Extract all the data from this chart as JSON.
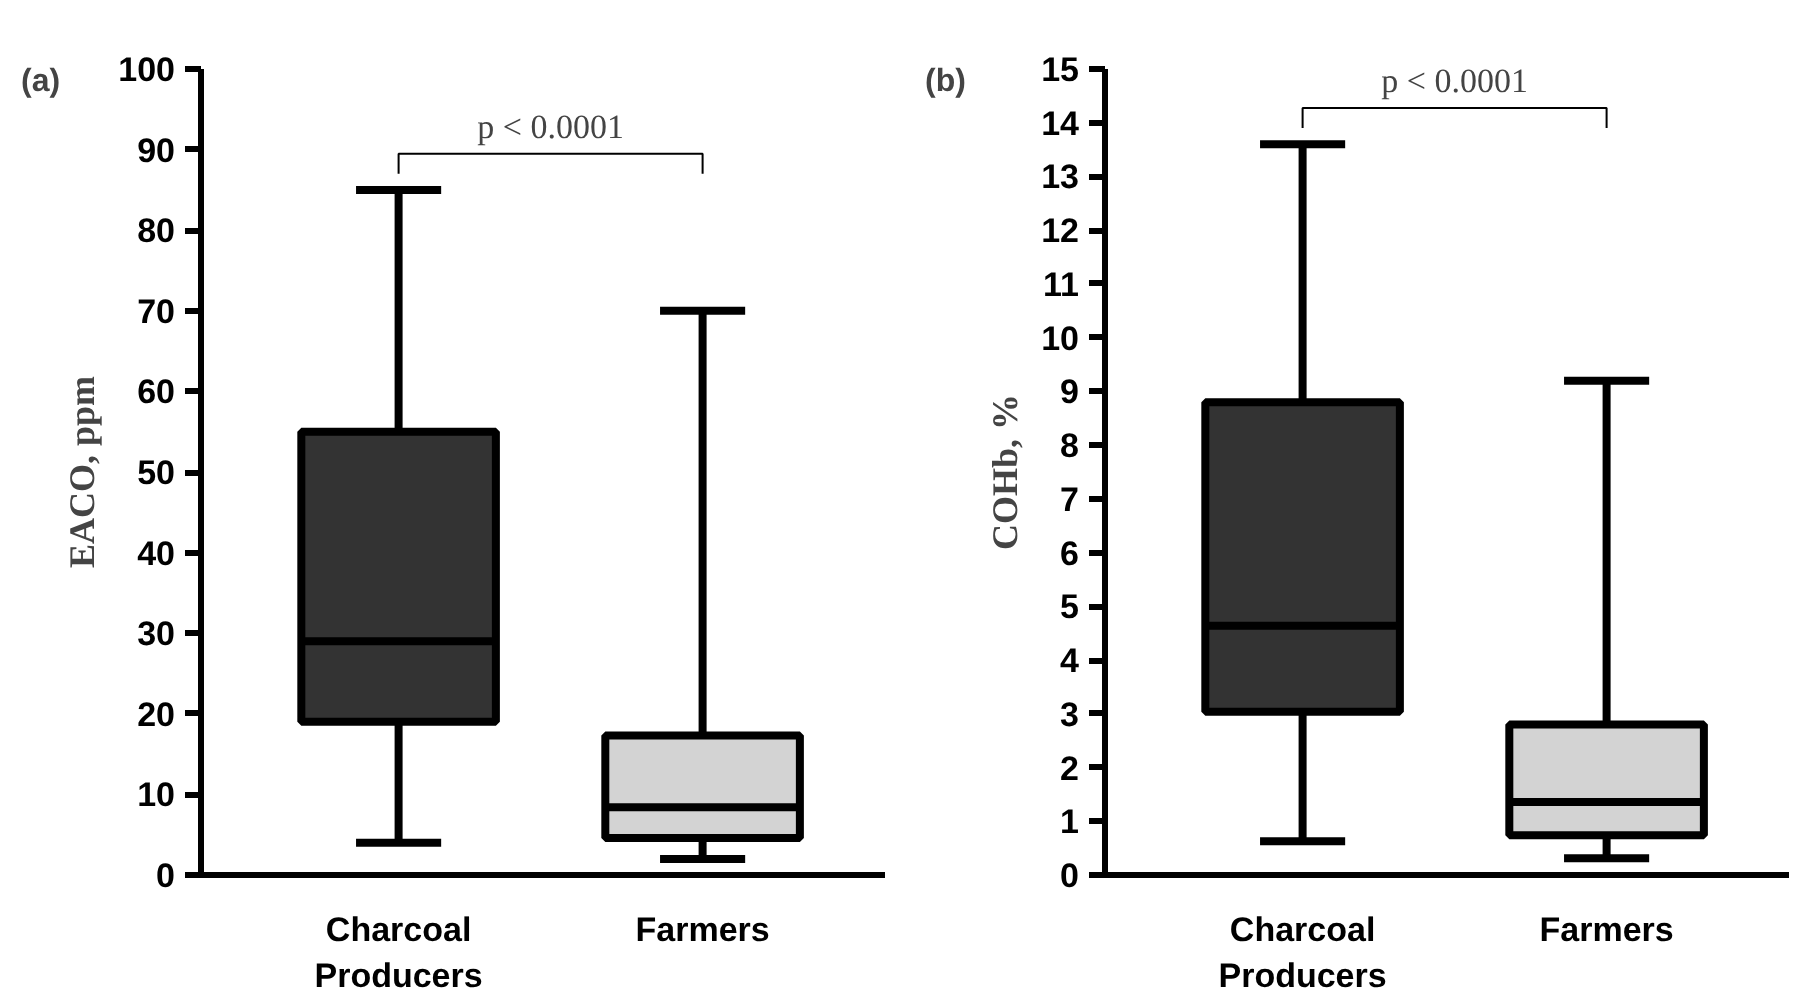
{
  "chart_data": [
    {
      "type": "box",
      "title": "(a)",
      "ylabel": "EACO, ppm",
      "categories": [
        "Charcoal\nProducers",
        "Farmers"
      ],
      "colors": [
        "#333333",
        "#d3d3d3"
      ],
      "boxes": [
        {
          "low": 4,
          "q1": 19,
          "median": 29,
          "q3": 55,
          "high": 85
        },
        {
          "low": 2,
          "q1": 4.6,
          "median": 8.4,
          "q3": 17.3,
          "high": 70
        }
      ],
      "ylim": [
        0,
        100
      ],
      "yticks": [
        0,
        10,
        20,
        30,
        40,
        50,
        60,
        70,
        80,
        90,
        100
      ],
      "grid": false,
      "annotations": [
        "p < 0.0001"
      ]
    },
    {
      "type": "box",
      "title": "(b)",
      "ylabel": "COHb, %",
      "categories": [
        "Charcoal\nProducers",
        "Farmers"
      ],
      "colors": [
        "#333333",
        "#d3d3d3"
      ],
      "boxes": [
        {
          "low": 0.63,
          "q1": 3.04,
          "median": 4.64,
          "q3": 8.8,
          "high": 13.6
        },
        {
          "low": 0.31,
          "q1": 0.74,
          "median": 1.36,
          "q3": 2.8,
          "high": 9.2
        }
      ],
      "ylim": [
        0,
        15
      ],
      "yticks": [
        0,
        1,
        2,
        3,
        4,
        5,
        6,
        7,
        8,
        9,
        10,
        11,
        12,
        13,
        14,
        15
      ],
      "grid": false,
      "annotations": [
        "p < 0.0001"
      ]
    }
  ]
}
